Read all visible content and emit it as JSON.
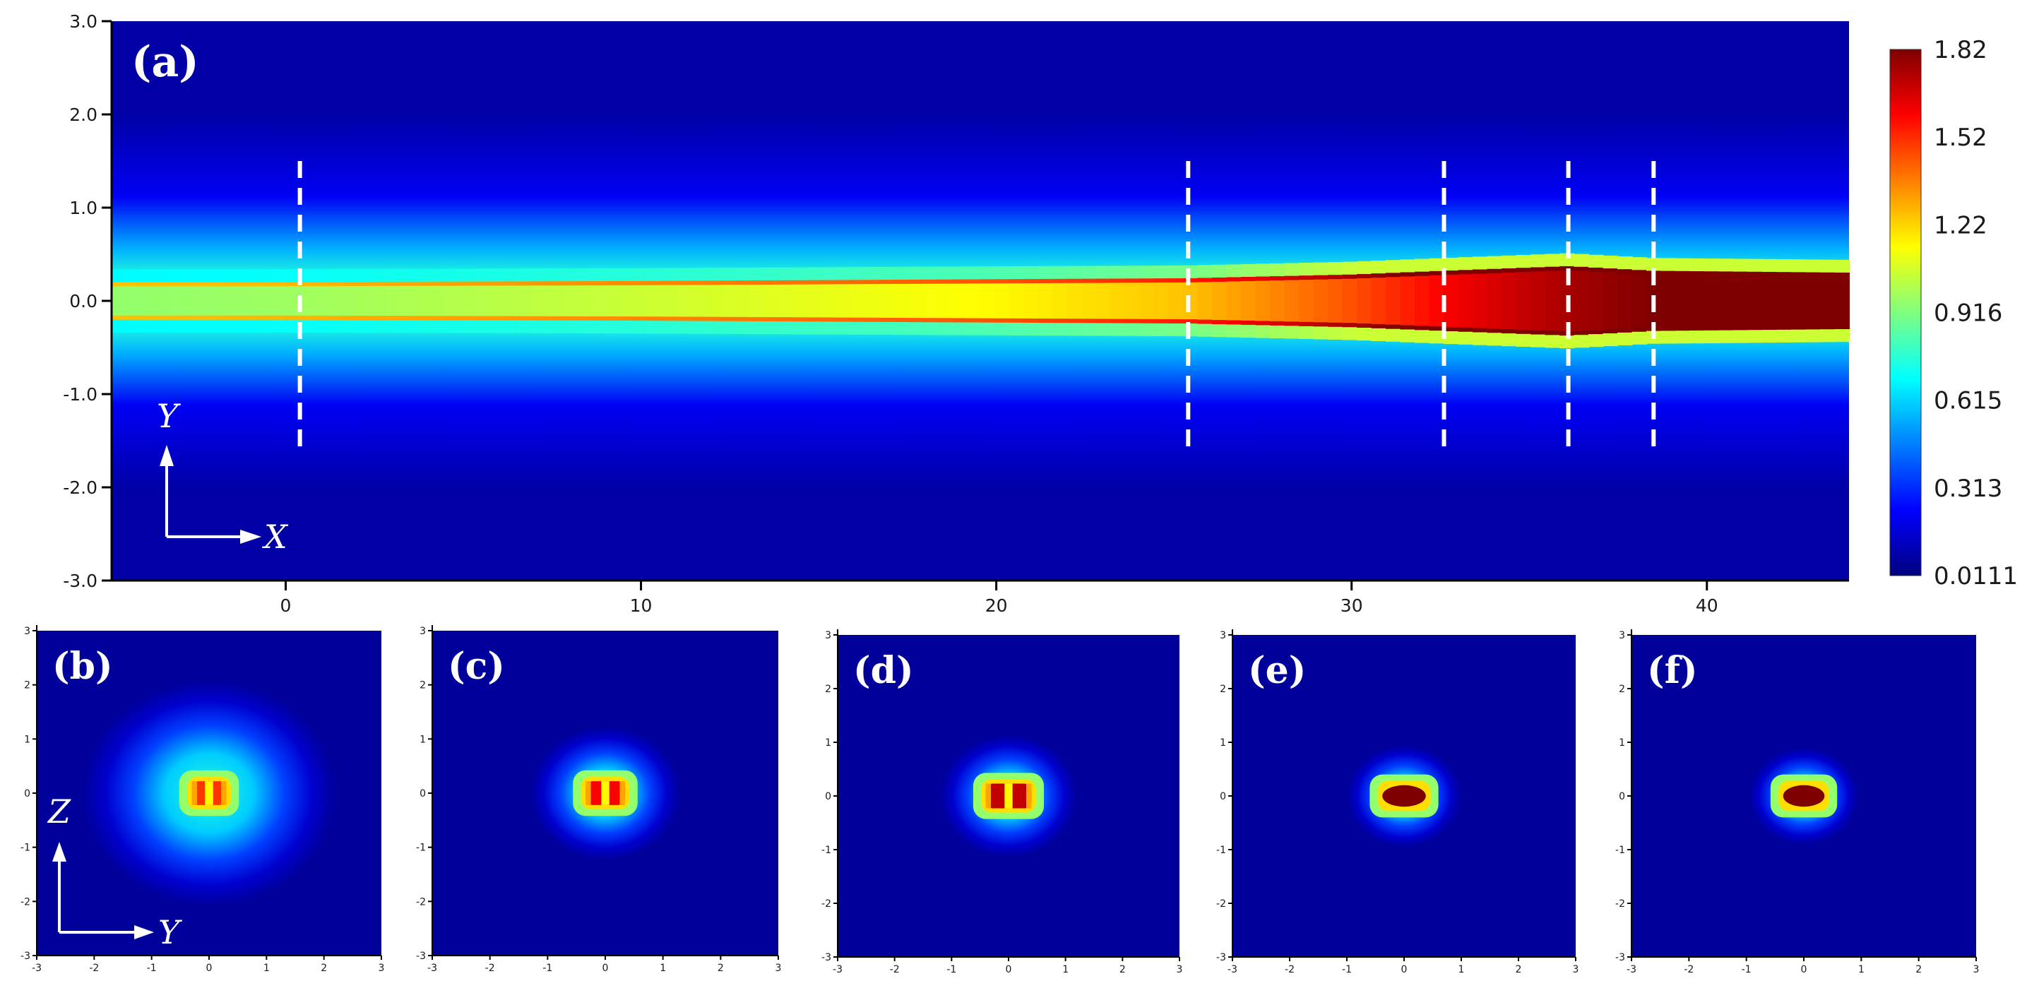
{
  "chart_data": [
    {
      "panel": "(a)",
      "type": "heatmap",
      "title": "",
      "xlabel": "X",
      "ylabel": "Y",
      "x_ticks": [
        "0",
        "10",
        "20",
        "30",
        "40"
      ],
      "x_tick_values": [
        0,
        10,
        20,
        30,
        40
      ],
      "y_ticks": [
        "3.0",
        "2.0",
        "1.0",
        "0.0",
        "-1.0",
        "-2.0",
        "-3.0"
      ],
      "y_tick_values": [
        3,
        2,
        1,
        0,
        -1,
        -2,
        -3
      ],
      "xlim": [
        -4.9,
        44
      ],
      "ylim": [
        -3,
        3
      ],
      "slice_positions_x": [
        0.4,
        25.4,
        32.6,
        36.1,
        38.5
      ],
      "beam_profile": {
        "x": [
          -4.9,
          0,
          10,
          20,
          25.4,
          30,
          32.6,
          36.1,
          38.5,
          44
        ],
        "peak_value": [
          0.95,
          0.97,
          1.05,
          1.15,
          1.25,
          1.45,
          1.6,
          1.75,
          1.82,
          1.82
        ],
        "half_width_y": [
          0.18,
          0.18,
          0.19,
          0.21,
          0.22,
          0.26,
          0.3,
          0.35,
          0.3,
          0.28
        ]
      },
      "arrows": {
        "horizontal": "X",
        "vertical": "Y"
      }
    },
    {
      "panel": "(b)",
      "type": "heatmap",
      "xlabel": "Y",
      "ylabel": "Z",
      "x_ticks": [
        "-3",
        "-2",
        "-1",
        "0",
        "1",
        "2",
        "3"
      ],
      "y_ticks": [
        "3",
        "2",
        "1",
        "0",
        "-1",
        "-2",
        "-3"
      ],
      "xlim": [
        -3,
        3
      ],
      "ylim": [
        -3,
        3
      ],
      "core": {
        "half_width_y": 0.3,
        "half_height_z": 0.22,
        "peak": 1.5,
        "split": true,
        "halo_radius": 2.2
      },
      "arrows": {
        "horizontal": "Y",
        "vertical": "Z"
      }
    },
    {
      "panel": "(c)",
      "type": "heatmap",
      "x_ticks": [
        "-3",
        "-2",
        "-1",
        "0",
        "1",
        "2",
        "3"
      ],
      "y_ticks": [
        "3",
        "2",
        "1",
        "0",
        "-1",
        "-2",
        "-3"
      ],
      "xlim": [
        -3,
        3
      ],
      "ylim": [
        -3,
        3
      ],
      "core": {
        "half_width_y": 0.34,
        "half_height_z": 0.22,
        "peak": 1.6,
        "split": true,
        "halo_radius": 1.3
      }
    },
    {
      "panel": "(d)",
      "type": "heatmap",
      "x_ticks": [
        "-3",
        "-2",
        "-1",
        "0",
        "1",
        "2",
        "3"
      ],
      "y_ticks": [
        "3",
        "2",
        "1",
        "0",
        "-1",
        "-2",
        "-3"
      ],
      "xlim": [
        -3,
        3
      ],
      "ylim": [
        -3,
        3
      ],
      "core": {
        "half_width_y": 0.4,
        "half_height_z": 0.23,
        "peak": 1.7,
        "split": true,
        "halo_radius": 1.2
      }
    },
    {
      "panel": "(e)",
      "type": "heatmap",
      "x_ticks": [
        "-3",
        "-2",
        "-1",
        "0",
        "1",
        "2",
        "3"
      ],
      "y_ticks": [
        "3",
        "2",
        "1",
        "0",
        "-1",
        "-2",
        "-3"
      ],
      "xlim": [
        -3,
        3
      ],
      "ylim": [
        -3,
        3
      ],
      "core": {
        "half_width_y": 0.38,
        "half_height_z": 0.2,
        "peak": 1.82,
        "split": false,
        "halo_radius": 1.0
      }
    },
    {
      "panel": "(f)",
      "type": "heatmap",
      "x_ticks": [
        "-3",
        "-2",
        "-1",
        "0",
        "1",
        "2",
        "3"
      ],
      "y_ticks": [
        "3",
        "2",
        "1",
        "0",
        "-1",
        "-2",
        "-3"
      ],
      "xlim": [
        -3,
        3
      ],
      "ylim": [
        -3,
        3
      ],
      "core": {
        "half_width_y": 0.36,
        "half_height_z": 0.2,
        "peak": 1.82,
        "split": false,
        "halo_radius": 0.95
      }
    }
  ],
  "colorbar": {
    "ticks": [
      "1.82",
      "1.52",
      "1.22",
      "0.916",
      "0.615",
      "0.313",
      "0.0111"
    ],
    "min": 0.0111,
    "max": 1.82,
    "colormap": [
      "#00007f",
      "#0000ff",
      "#007fff",
      "#00ffff",
      "#7fff7f",
      "#ffff00",
      "#ff7f00",
      "#ff0000",
      "#7f0000"
    ]
  },
  "colors": {
    "background": "#00008f",
    "marker": "#ffffff"
  }
}
